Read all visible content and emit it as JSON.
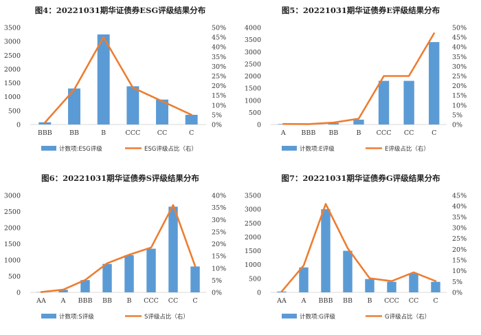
{
  "colors": {
    "bar": "#5b9bd5",
    "line": "#ed7d31",
    "axis": "#d9d9d9"
  },
  "chart_data": [
    {
      "type": "bar",
      "title": "图4：20221031期华证债券ESG评级结果分布",
      "categories": [
        "BBB",
        "BB",
        "B",
        "CCC",
        "CC",
        "C"
      ],
      "series": [
        {
          "name": "计数项:ESG评级",
          "axis": "left",
          "type": "bar",
          "values": [
            80,
            1300,
            3250,
            1380,
            900,
            350
          ]
        },
        {
          "name": "ESG评级占比（右）",
          "axis": "right",
          "type": "line",
          "values": [
            1,
            18,
            45,
            19,
            12,
            5
          ]
        }
      ],
      "y_left": {
        "min": 0,
        "max": 3500,
        "ticks": [
          "0",
          "500",
          "1000",
          "1500",
          "2000",
          "2500",
          "3000",
          "3500"
        ]
      },
      "y_right": {
        "min": 0,
        "max": 50,
        "ticks": [
          "0%",
          "5%",
          "10%",
          "15%",
          "20%",
          "25%",
          "30%",
          "35%",
          "40%",
          "45%",
          "50%"
        ]
      }
    },
    {
      "type": "bar",
      "title": "图5：20221031期华证债券E评级结果分布",
      "categories": [
        "A",
        "BBB",
        "BB",
        "B",
        "CCC",
        "CC",
        "C"
      ],
      "series": [
        {
          "name": "计数项:E评级",
          "axis": "left",
          "type": "bar",
          "values": [
            20,
            10,
            60,
            200,
            1800,
            1800,
            3400
          ]
        },
        {
          "name": "E评级占比（右）",
          "axis": "right",
          "type": "line",
          "values": [
            0.3,
            0.2,
            1,
            3,
            25,
            25,
            47
          ]
        }
      ],
      "y_left": {
        "min": 0,
        "max": 4000,
        "ticks": [
          "0",
          "500",
          "1000",
          "1500",
          "2000",
          "2500",
          "3000",
          "3500",
          "4000"
        ]
      },
      "y_right": {
        "min": 0,
        "max": 50,
        "ticks": [
          "0%",
          "5%",
          "10%",
          "15%",
          "20%",
          "25%",
          "30%",
          "35%",
          "40%",
          "45%",
          "50%"
        ]
      }
    },
    {
      "type": "bar",
      "title": "图6：20221031期华证债券S评级结果分布",
      "categories": [
        "AA",
        "A",
        "BBB",
        "BB",
        "B",
        "CCC",
        "CC",
        "C"
      ],
      "series": [
        {
          "name": "计数项:S评级",
          "axis": "left",
          "type": "bar",
          "values": [
            10,
            80,
            380,
            880,
            1150,
            1350,
            2650,
            800
          ]
        },
        {
          "name": "S评级占比（右）",
          "axis": "right",
          "type": "line",
          "values": [
            0.1,
            1.1,
            5.1,
            12,
            15.5,
            18.5,
            36,
            10.8
          ]
        }
      ],
      "y_left": {
        "min": 0,
        "max": 3000,
        "ticks": [
          "0",
          "500",
          "1000",
          "1500",
          "2000",
          "2500",
          "3000"
        ]
      },
      "y_right": {
        "min": 0,
        "max": 40,
        "ticks": [
          "0%",
          "5%",
          "10%",
          "15%",
          "20%",
          "25%",
          "30%",
          "35%",
          "40%"
        ]
      }
    },
    {
      "type": "bar",
      "title": "图7：20221031期华证债券G评级结果分布",
      "categories": [
        "AA",
        "A",
        "BBB",
        "BB",
        "B",
        "CCC",
        "CC",
        "C"
      ],
      "series": [
        {
          "name": "计数项:G评级",
          "axis": "left",
          "type": "bar",
          "values": [
            30,
            900,
            3000,
            1500,
            480,
            380,
            680,
            380
          ]
        },
        {
          "name": "G评级占比（右）",
          "axis": "right",
          "type": "line",
          "values": [
            0.4,
            12.5,
            41,
            20.5,
            6.5,
            5.2,
            9.3,
            5.2
          ]
        }
      ],
      "y_left": {
        "min": 0,
        "max": 3500,
        "ticks": [
          "0",
          "500",
          "1000",
          "1500",
          "2000",
          "2500",
          "3000",
          "3500"
        ]
      },
      "y_right": {
        "min": 0,
        "max": 45,
        "ticks": [
          "0%",
          "5%",
          "10%",
          "15%",
          "20%",
          "25%",
          "30%",
          "35%",
          "40%",
          "45%"
        ]
      }
    }
  ]
}
